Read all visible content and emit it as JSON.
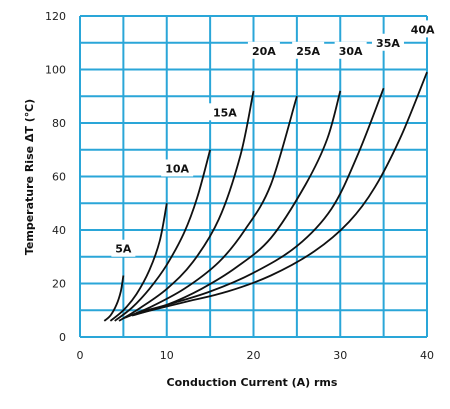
{
  "chart_data": {
    "type": "line",
    "xlabel": "Conduction Current (A) rms",
    "ylabel": "Temperature Rise ΔT (℃)",
    "xlim": [
      0,
      40
    ],
    "ylim": [
      0,
      120
    ],
    "x_ticks": [
      "0",
      "10",
      "20",
      "30",
      "40"
    ],
    "y_ticks": [
      "0",
      "20",
      "40",
      "60",
      "80",
      "100",
      "120"
    ],
    "grid": true,
    "grid_color": "#2aa6d8",
    "line_color": "#111111",
    "series": [
      {
        "name": "5A",
        "points": [
          [
            2.8,
            6
          ],
          [
            3.5,
            8
          ],
          [
            4.2,
            12
          ],
          [
            4.7,
            17
          ],
          [
            5.0,
            23
          ]
        ]
      },
      {
        "name": "10A",
        "points": [
          [
            3.5,
            6
          ],
          [
            5,
            10
          ],
          [
            6.5,
            16
          ],
          [
            8,
            25
          ],
          [
            9.2,
            36
          ],
          [
            10,
            50
          ]
        ]
      },
      {
        "name": "15A",
        "points": [
          [
            4,
            6
          ],
          [
            6,
            11
          ],
          [
            8,
            18
          ],
          [
            10,
            27
          ],
          [
            12,
            39
          ],
          [
            13.5,
            52
          ],
          [
            15,
            70
          ]
        ]
      },
      {
        "name": "20A",
        "points": [
          [
            4.5,
            6
          ],
          [
            7,
            11
          ],
          [
            10,
            18
          ],
          [
            13,
            28
          ],
          [
            16,
            44
          ],
          [
            18.5,
            68
          ],
          [
            20,
            92
          ]
        ]
      },
      {
        "name": "25A",
        "points": [
          [
            5,
            7
          ],
          [
            8,
            11
          ],
          [
            12,
            18
          ],
          [
            16,
            28
          ],
          [
            19,
            40
          ],
          [
            22,
            57
          ],
          [
            25,
            90
          ]
        ]
      },
      {
        "name": "30A",
        "points": [
          [
            6,
            8
          ],
          [
            10,
            12
          ],
          [
            14,
            18
          ],
          [
            18,
            26
          ],
          [
            22,
            37
          ],
          [
            26,
            57
          ],
          [
            28.5,
            74
          ],
          [
            30,
            92
          ]
        ]
      },
      {
        "name": "35A",
        "points": [
          [
            6.5,
            9
          ],
          [
            10,
            12
          ],
          [
            15,
            17
          ],
          [
            20,
            24
          ],
          [
            25,
            34
          ],
          [
            29,
            48
          ],
          [
            32,
            68
          ],
          [
            35,
            93
          ]
        ]
      },
      {
        "name": "40A",
        "points": [
          [
            7,
            9
          ],
          [
            12,
            13
          ],
          [
            17,
            17
          ],
          [
            22,
            23
          ],
          [
            27,
            32
          ],
          [
            31,
            43
          ],
          [
            34,
            56
          ],
          [
            37,
            75
          ],
          [
            40,
            99
          ]
        ]
      }
    ],
    "labels": [
      {
        "text": "5A",
        "x": 5.0,
        "y": 33
      },
      {
        "text": "10A",
        "x": 11.2,
        "y": 63
      },
      {
        "text": "15A",
        "x": 16.7,
        "y": 84
      },
      {
        "text": "20A",
        "x": 21.2,
        "y": 107
      },
      {
        "text": "25A",
        "x": 26.3,
        "y": 107
      },
      {
        "text": "30A",
        "x": 31.2,
        "y": 107
      },
      {
        "text": "35A",
        "x": 35.5,
        "y": 110
      },
      {
        "text": "40A",
        "x": 39.5,
        "y": 115
      }
    ]
  }
}
